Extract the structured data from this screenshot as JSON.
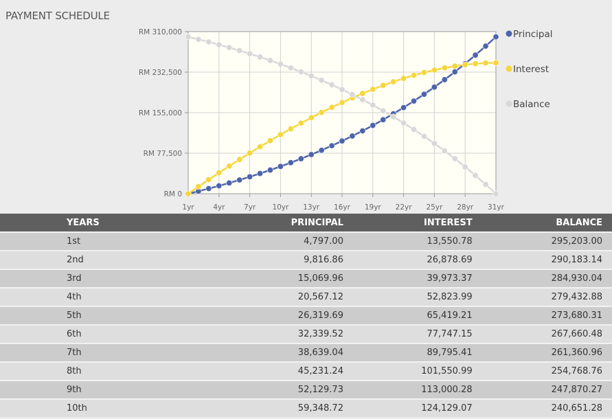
{
  "title": "PAYMENT SCHEDULE",
  "table": {
    "headers": [
      "YEARS",
      "PRINCIPAL",
      "INTEREST",
      "BALANCE"
    ],
    "rows": [
      [
        "1st",
        "4,797.00",
        "13,550.78",
        "295,203.00"
      ],
      [
        "2nd",
        "9,816.86",
        "26,878.69",
        "290,183.14"
      ],
      [
        "3rd",
        "15,069.96",
        "39,973.37",
        "284,930.04"
      ],
      [
        "4th",
        "20,567.12",
        "52,823.99",
        "279,432.88"
      ],
      [
        "5th",
        "26,319.69",
        "65,419.21",
        "273,680.31"
      ],
      [
        "6th",
        "32,339.52",
        "77,747.15",
        "267,660.48"
      ],
      [
        "7th",
        "38,639.04",
        "89,795.41",
        "261,360.96"
      ],
      [
        "8th",
        "45,231.24",
        "101,550.99",
        "254,768.76"
      ],
      [
        "9th",
        "52,129.73",
        "113,000.28",
        "247,870.27"
      ],
      [
        "10th",
        "59,348.72",
        "124,129.07",
        "240,651.28"
      ]
    ]
  },
  "chart_data": {
    "type": "line",
    "x": [
      1,
      2,
      3,
      4,
      5,
      6,
      7,
      8,
      9,
      10,
      11,
      12,
      13,
      14,
      15,
      16,
      17,
      18,
      19,
      20,
      21,
      22,
      23,
      24,
      25,
      26,
      27,
      28,
      29,
      30,
      31
    ],
    "xticks": [
      "1yr",
      "4yr",
      "7yr",
      "10yr",
      "13yr",
      "16yr",
      "19yr",
      "22yr",
      "25yr",
      "28yr",
      "31yr"
    ],
    "yticks": [
      "RM 0",
      "RM 77,500",
      "RM 155,000",
      "RM 232,500",
      "RM 310,000"
    ],
    "ylim": [
      0,
      310000
    ],
    "xlim": [
      1,
      31
    ],
    "grid": true,
    "legend_position": "right",
    "series": [
      {
        "name": "Principal",
        "color": "#4d64ab",
        "values": [
          0,
          4797,
          9817,
          15070,
          20567,
          26320,
          32340,
          38639,
          45231,
          52130,
          59349,
          66903,
          74808,
          83080,
          91737,
          100797,
          110278,
          120201,
          130585,
          141452,
          152825,
          164726,
          177181,
          190215,
          203855,
          218129,
          233067,
          248700,
          265060,
          282180,
          300000
        ]
      },
      {
        "name": "Interest",
        "color": "#f6d63c",
        "values": [
          0,
          13551,
          26879,
          39973,
          52824,
          65419,
          77747,
          89795,
          101551,
          113000,
          124129,
          134922,
          145364,
          155440,
          165130,
          174418,
          183284,
          191708,
          199671,
          207152,
          214126,
          220572,
          226464,
          231777,
          236484,
          240557,
          243966,
          246681,
          248668,
          249895,
          250300
        ]
      },
      {
        "name": "Balance",
        "color": "#d8d8d8",
        "values": [
          300000,
          295203,
          290183,
          284930,
          279433,
          273680,
          267660,
          261361,
          254769,
          247870,
          240651,
          233097,
          225192,
          216920,
          208263,
          199203,
          189722,
          179799,
          169415,
          158548,
          147175,
          135274,
          122819,
          109785,
          96145,
          81871,
          66933,
          51300,
          34940,
          17820,
          0
        ]
      }
    ]
  }
}
